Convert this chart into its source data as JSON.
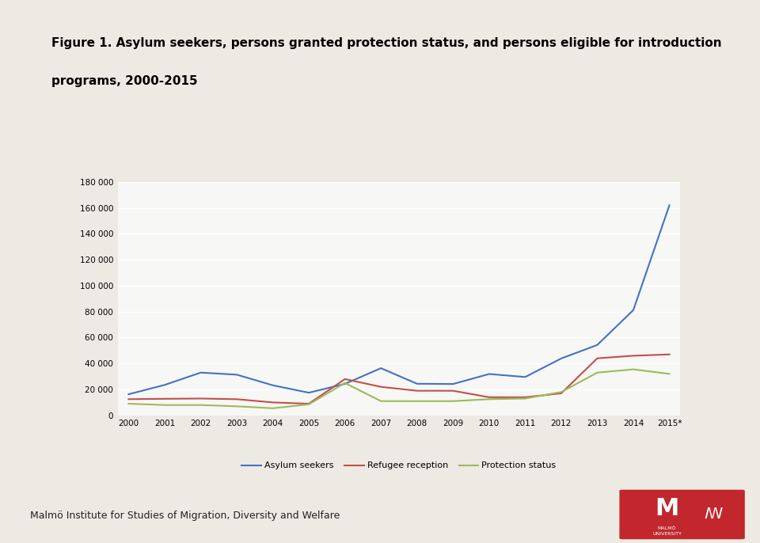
{
  "title_line1": "Figure 1. Asylum seekers, persons granted protection status, and persons eligible for introduction",
  "title_line2": "programs, 2000-2015",
  "years": [
    "2000",
    "2001",
    "2002",
    "2003",
    "2004",
    "2005",
    "2006",
    "2007",
    "2008",
    "2009",
    "2010",
    "2011",
    "2012",
    "2013",
    "2014",
    "2015*"
  ],
  "asylum_seekers": [
    16300,
    23500,
    33000,
    31400,
    23200,
    17500,
    24300,
    36400,
    24400,
    24200,
    31900,
    29600,
    43900,
    54300,
    81200,
    162000
  ],
  "refugee_reception": [
    12500,
    12800,
    13000,
    12500,
    10000,
    9000,
    28000,
    22000,
    19000,
    19000,
    14000,
    14000,
    17000,
    44000,
    46000,
    47000
  ],
  "protection_status": [
    9000,
    8000,
    8000,
    7000,
    5500,
    8500,
    25000,
    11000,
    11000,
    11000,
    12500,
    13000,
    18000,
    33000,
    35500,
    32000
  ],
  "asylum_color": "#4472C4",
  "refugee_color": "#C0504D",
  "protection_color": "#9BBB59",
  "bg_outer": "#EDE9E3",
  "bg_white_box": "#FFFFFF",
  "bg_chart_inner": "#F7F7F5",
  "bg_bottom": "#AABFBF",
  "ylim": [
    0,
    180000
  ],
  "yticks": [
    0,
    20000,
    40000,
    60000,
    80000,
    100000,
    120000,
    140000,
    160000,
    180000
  ],
  "legend_labels": [
    "Asylum seekers",
    "Refugee reception",
    "Protection status"
  ],
  "title_fontsize": 11,
  "tick_fontsize": 7.5,
  "legend_fontsize": 8
}
